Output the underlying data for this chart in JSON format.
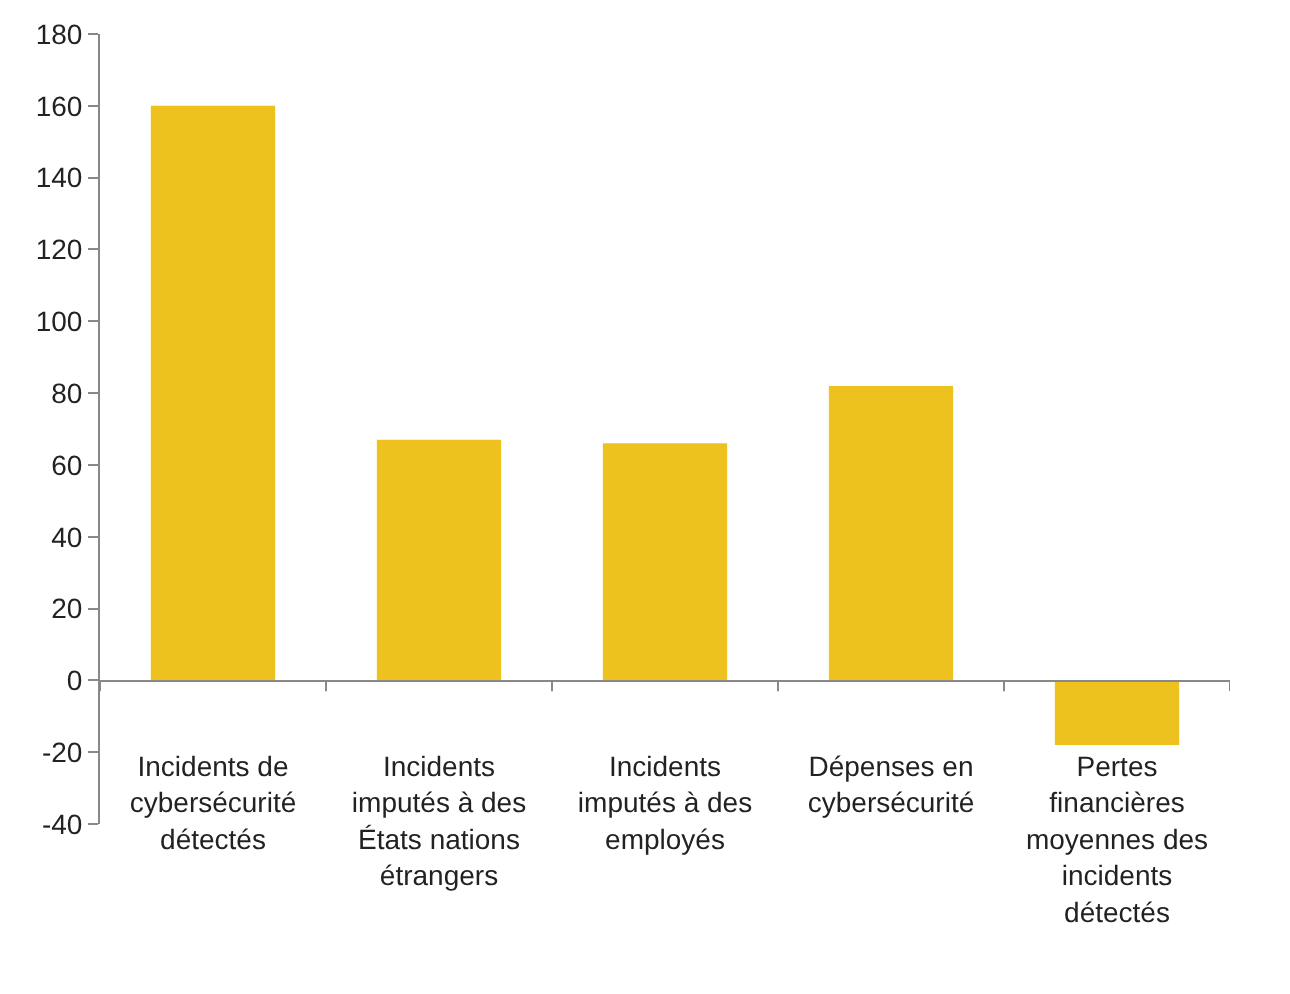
{
  "chart_data": {
    "type": "bar",
    "categories": [
      "Incidents de cybersécurité détectés",
      "Incidents imputés à des États nations étrangers",
      "Incidents imputés à des employés",
      "Dépenses en cybersécurité",
      "Pertes financières moyennes des incidents détectés"
    ],
    "values": [
      160,
      67,
      66,
      82,
      -18
    ],
    "color": "#eec21e",
    "ylim": [
      -40,
      180
    ],
    "yticks": [
      -40,
      -20,
      0,
      20,
      40,
      60,
      80,
      100,
      120,
      140,
      160,
      180
    ],
    "grid": false
  }
}
